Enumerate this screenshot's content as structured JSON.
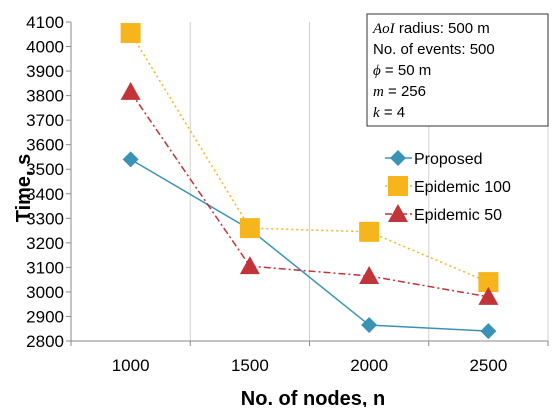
{
  "chart_data": {
    "type": "line",
    "xlabel": "No. of nodes, n",
    "ylabel": "Time, s",
    "categories": [
      "1000",
      "1500",
      "2000",
      "2500"
    ],
    "ylim": [
      2800,
      4100
    ],
    "yticks": [
      2800,
      2900,
      3000,
      3100,
      3200,
      3300,
      3400,
      3500,
      3600,
      3700,
      3800,
      3900,
      4000,
      4100
    ],
    "grid": "vertical",
    "legend_position": "right",
    "series": [
      {
        "name": "Proposed",
        "values": [
          3540,
          3255,
          2865,
          2840
        ],
        "color": "#3a93b5",
        "marker": "diamond",
        "line": "solid"
      },
      {
        "name": "Epidemic 100",
        "values": [
          4055,
          3260,
          3245,
          3040
        ],
        "color": "#f6b51d",
        "marker": "square",
        "line": "dotted"
      },
      {
        "name": "Epidemic 50",
        "values": [
          3815,
          3105,
          3065,
          2980
        ],
        "color": "#c0343a",
        "marker": "triangle",
        "line": "dashdot"
      }
    ],
    "annotation": {
      "lines": [
        {
          "var": "AoI",
          "text": " radius: 500 m"
        },
        {
          "var": "",
          "text": "No. of events: 500"
        },
        {
          "var": "ϕ",
          "text": " = 50 m"
        },
        {
          "var": "m",
          "text": " = 256"
        },
        {
          "var": "k",
          "text": " = 4"
        }
      ]
    }
  }
}
